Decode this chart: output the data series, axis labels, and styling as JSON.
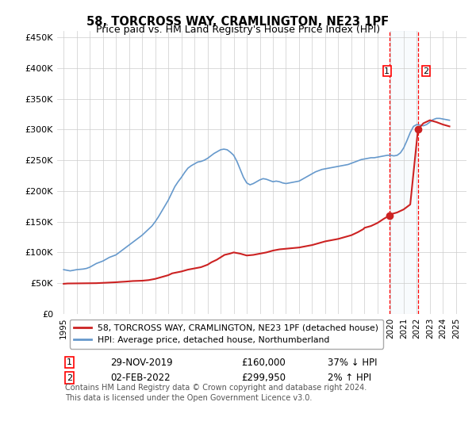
{
  "title": "58, TORCROSS WAY, CRAMLINGTON, NE23 1PF",
  "subtitle": "Price paid vs. HM Land Registry's House Price Index (HPI)",
  "hpi_color": "#6699cc",
  "price_color": "#cc2222",
  "highlight_color": "#dce9f5",
  "sale1_x": 2019.92,
  "sale1_y": 160000,
  "sale1_label": "1",
  "sale2_x": 2022.09,
  "sale2_y": 299950,
  "sale2_label": "2",
  "ylim_min": 0,
  "ylim_max": 460000,
  "xlim_min": 1994.5,
  "xlim_max": 2025.8,
  "yticks": [
    0,
    50000,
    100000,
    150000,
    200000,
    250000,
    300000,
    350000,
    400000,
    450000
  ],
  "ytick_labels": [
    "£0",
    "£50K",
    "£100K",
    "£150K",
    "£200K",
    "£250K",
    "£300K",
    "£350K",
    "£400K",
    "£450K"
  ],
  "xticks": [
    1995,
    1996,
    1997,
    1998,
    1999,
    2000,
    2001,
    2002,
    2003,
    2004,
    2005,
    2006,
    2007,
    2008,
    2009,
    2010,
    2011,
    2012,
    2013,
    2014,
    2015,
    2016,
    2017,
    2018,
    2019,
    2020,
    2021,
    2022,
    2023,
    2024,
    2025
  ],
  "legend_line1": "58, TORCROSS WAY, CRAMLINGTON, NE23 1PF (detached house)",
  "legend_line2": "HPI: Average price, detached house, Northumberland",
  "annotation1_date": "29-NOV-2019",
  "annotation1_price": "£160,000",
  "annotation1_hpi": "37% ↓ HPI",
  "annotation2_date": "02-FEB-2022",
  "annotation2_price": "£299,950",
  "annotation2_hpi": "2% ↑ HPI",
  "footer": "Contains HM Land Registry data © Crown copyright and database right 2024.\nThis data is licensed under the Open Government Licence v3.0.",
  "hpi_data_x": [
    1995.0,
    1995.25,
    1995.5,
    1995.75,
    1996.0,
    1996.25,
    1996.5,
    1996.75,
    1997.0,
    1997.25,
    1997.5,
    1997.75,
    1998.0,
    1998.25,
    1998.5,
    1998.75,
    1999.0,
    1999.25,
    1999.5,
    1999.75,
    2000.0,
    2000.25,
    2000.5,
    2000.75,
    2001.0,
    2001.25,
    2001.5,
    2001.75,
    2002.0,
    2002.25,
    2002.5,
    2002.75,
    2003.0,
    2003.25,
    2003.5,
    2003.75,
    2004.0,
    2004.25,
    2004.5,
    2004.75,
    2005.0,
    2005.25,
    2005.5,
    2005.75,
    2006.0,
    2006.25,
    2006.5,
    2006.75,
    2007.0,
    2007.25,
    2007.5,
    2007.75,
    2008.0,
    2008.25,
    2008.5,
    2008.75,
    2009.0,
    2009.25,
    2009.5,
    2009.75,
    2010.0,
    2010.25,
    2010.5,
    2010.75,
    2011.0,
    2011.25,
    2011.5,
    2011.75,
    2012.0,
    2012.25,
    2012.5,
    2012.75,
    2013.0,
    2013.25,
    2013.5,
    2013.75,
    2014.0,
    2014.25,
    2014.5,
    2014.75,
    2015.0,
    2015.25,
    2015.5,
    2015.75,
    2016.0,
    2016.25,
    2016.5,
    2016.75,
    2017.0,
    2017.25,
    2017.5,
    2017.75,
    2018.0,
    2018.25,
    2018.5,
    2018.75,
    2019.0,
    2019.25,
    2019.5,
    2019.75,
    2020.0,
    2020.25,
    2020.5,
    2020.75,
    2021.0,
    2021.25,
    2021.5,
    2021.75,
    2022.0,
    2022.25,
    2022.5,
    2022.75,
    2023.0,
    2023.25,
    2023.5,
    2023.75,
    2024.0,
    2024.25,
    2024.5
  ],
  "hpi_data_y": [
    72000,
    71000,
    70000,
    71000,
    72000,
    72500,
    73000,
    74000,
    76000,
    79000,
    82000,
    84000,
    86000,
    89000,
    92000,
    94000,
    96000,
    100000,
    104000,
    108000,
    112000,
    116000,
    120000,
    124000,
    128000,
    133000,
    138000,
    143000,
    150000,
    158000,
    167000,
    176000,
    185000,
    196000,
    207000,
    215000,
    222000,
    230000,
    237000,
    241000,
    244000,
    247000,
    248000,
    250000,
    253000,
    257000,
    261000,
    264000,
    267000,
    268000,
    267000,
    263000,
    258000,
    248000,
    235000,
    222000,
    213000,
    210000,
    212000,
    215000,
    218000,
    220000,
    219000,
    217000,
    215000,
    216000,
    215000,
    213000,
    212000,
    213000,
    214000,
    215000,
    216000,
    219000,
    222000,
    225000,
    228000,
    231000,
    233000,
    235000,
    236000,
    237000,
    238000,
    239000,
    240000,
    241000,
    242000,
    243000,
    245000,
    247000,
    249000,
    251000,
    252000,
    253000,
    254000,
    254000,
    255000,
    256000,
    257000,
    258000,
    258000,
    257000,
    258000,
    262000,
    270000,
    282000,
    295000,
    305000,
    308000,
    307000,
    306000,
    308000,
    312000,
    316000,
    318000,
    318000,
    317000,
    316000,
    315000
  ],
  "price_data_x": [
    1995.0,
    1995.3,
    1997.5,
    1998.0,
    1998.5,
    1999.0,
    1999.3,
    1999.7,
    2000.0,
    2000.3,
    2001.0,
    2001.5,
    2002.0,
    2002.5,
    2003.0,
    2003.3,
    2004.0,
    2004.5,
    2005.0,
    2005.5,
    2006.0,
    2006.3,
    2006.7,
    2007.0,
    2007.3,
    2007.7,
    2008.0,
    2008.5,
    2009.0,
    2009.5,
    2010.0,
    2010.5,
    2011.0,
    2011.5,
    2012.0,
    2012.5,
    2013.0,
    2013.5,
    2014.0,
    2014.5,
    2015.0,
    2015.5,
    2016.0,
    2016.5,
    2017.0,
    2017.5,
    2017.92,
    2018.0,
    2018.5,
    2019.0,
    2019.5,
    2019.92,
    2020.0,
    2020.5,
    2021.0,
    2021.5,
    2022.09,
    2022.5,
    2023.0,
    2023.5,
    2024.0,
    2024.5
  ],
  "price_data_y": [
    49000,
    49500,
    50000,
    50500,
    51000,
    51500,
    52000,
    52500,
    53000,
    53500,
    54000,
    55000,
    57000,
    60000,
    63000,
    66000,
    69000,
    72000,
    74000,
    76000,
    80000,
    84000,
    88000,
    92000,
    96000,
    98000,
    100000,
    98000,
    95000,
    96000,
    98000,
    100000,
    103000,
    105000,
    106000,
    107000,
    108000,
    110000,
    112000,
    115000,
    118000,
    120000,
    122000,
    125000,
    128000,
    133000,
    138000,
    140000,
    143000,
    148000,
    155000,
    160000,
    162000,
    165000,
    170000,
    178000,
    299950,
    310000,
    315000,
    312000,
    308000,
    305000
  ]
}
